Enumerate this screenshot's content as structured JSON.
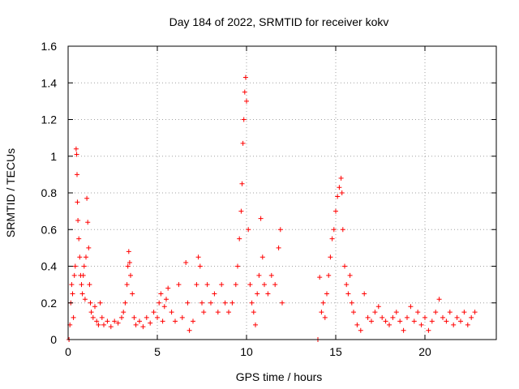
{
  "chart_data": {
    "type": "scatter",
    "title": "Day 184 of 2022, SRMTID for receiver kokv",
    "xlabel": "GPS time / hours",
    "ylabel": "SRMTID / TECUs",
    "xlim": [
      0,
      24
    ],
    "ylim": [
      0,
      1.6
    ],
    "grid": true,
    "marker": "+",
    "color": "#ff0000",
    "x_ticks": [
      0,
      5,
      10,
      15,
      20
    ],
    "y_ticks": [
      0,
      0.2,
      0.4,
      0.6,
      0.8,
      1,
      1.2,
      1.4,
      1.6
    ],
    "x_tick_labels": [
      "0",
      "5",
      "10",
      "15",
      "20"
    ],
    "y_tick_labels": [
      "0",
      "0.2",
      "0.4",
      "0.6",
      "0.8",
      "1",
      "1.2",
      "1.4",
      "1.6"
    ],
    "series": [
      {
        "name": "SRMTID",
        "points": [
          [
            0.05,
            0.0
          ],
          [
            0.1,
            0.08
          ],
          [
            0.15,
            0.2
          ],
          [
            0.2,
            0.3
          ],
          [
            0.25,
            0.25
          ],
          [
            0.3,
            0.12
          ],
          [
            0.35,
            0.35
          ],
          [
            0.4,
            0.4
          ],
          [
            0.45,
            1.04
          ],
          [
            0.48,
            1.01
          ],
          [
            0.5,
            0.9
          ],
          [
            0.52,
            0.75
          ],
          [
            0.55,
            0.65
          ],
          [
            0.6,
            0.55
          ],
          [
            0.65,
            0.45
          ],
          [
            0.7,
            0.35
          ],
          [
            0.75,
            0.3
          ],
          [
            0.8,
            0.25
          ],
          [
            0.85,
            0.35
          ],
          [
            0.9,
            0.4
          ],
          [
            0.95,
            0.22
          ],
          [
            1.0,
            0.45
          ],
          [
            1.05,
            0.77
          ],
          [
            1.1,
            0.64
          ],
          [
            1.15,
            0.5
          ],
          [
            1.2,
            0.3
          ],
          [
            1.25,
            0.2
          ],
          [
            1.3,
            0.15
          ],
          [
            1.4,
            0.12
          ],
          [
            1.5,
            0.18
          ],
          [
            1.6,
            0.1
          ],
          [
            1.7,
            0.08
          ],
          [
            1.8,
            0.2
          ],
          [
            1.9,
            0.12
          ],
          [
            2.0,
            0.08
          ],
          [
            2.2,
            0.1
          ],
          [
            2.4,
            0.07
          ],
          [
            2.6,
            0.1
          ],
          [
            2.8,
            0.09
          ],
          [
            3.0,
            0.12
          ],
          [
            3.1,
            0.15
          ],
          [
            3.2,
            0.2
          ],
          [
            3.3,
            0.3
          ],
          [
            3.35,
            0.4
          ],
          [
            3.4,
            0.48
          ],
          [
            3.45,
            0.42
          ],
          [
            3.5,
            0.35
          ],
          [
            3.6,
            0.25
          ],
          [
            3.7,
            0.12
          ],
          [
            3.8,
            0.08
          ],
          [
            4.0,
            0.1
          ],
          [
            4.2,
            0.07
          ],
          [
            4.4,
            0.12
          ],
          [
            4.6,
            0.09
          ],
          [
            4.8,
            0.15
          ],
          [
            5.0,
            0.12
          ],
          [
            5.1,
            0.2
          ],
          [
            5.2,
            0.25
          ],
          [
            5.3,
            0.1
          ],
          [
            5.4,
            0.18
          ],
          [
            5.5,
            0.22
          ],
          [
            5.6,
            0.28
          ],
          [
            5.8,
            0.15
          ],
          [
            6.0,
            0.1
          ],
          [
            6.2,
            0.3
          ],
          [
            6.4,
            0.12
          ],
          [
            6.6,
            0.42
          ],
          [
            6.7,
            0.2
          ],
          [
            6.8,
            0.05
          ],
          [
            7.0,
            0.1
          ],
          [
            7.2,
            0.3
          ],
          [
            7.3,
            0.45
          ],
          [
            7.4,
            0.4
          ],
          [
            7.5,
            0.2
          ],
          [
            7.6,
            0.15
          ],
          [
            7.8,
            0.3
          ],
          [
            8.0,
            0.2
          ],
          [
            8.2,
            0.25
          ],
          [
            8.4,
            0.15
          ],
          [
            8.6,
            0.3
          ],
          [
            8.8,
            0.2
          ],
          [
            9.0,
            0.15
          ],
          [
            9.2,
            0.2
          ],
          [
            9.4,
            0.3
          ],
          [
            9.5,
            0.4
          ],
          [
            9.6,
            0.55
          ],
          [
            9.7,
            0.7
          ],
          [
            9.75,
            0.85
          ],
          [
            9.8,
            1.07
          ],
          [
            9.85,
            1.2
          ],
          [
            9.9,
            1.35
          ],
          [
            9.95,
            1.43
          ],
          [
            10.0,
            1.3
          ],
          [
            10.1,
            0.6
          ],
          [
            10.2,
            0.3
          ],
          [
            10.3,
            0.2
          ],
          [
            10.4,
            0.15
          ],
          [
            10.5,
            0.08
          ],
          [
            10.6,
            0.25
          ],
          [
            10.7,
            0.35
          ],
          [
            10.8,
            0.66
          ],
          [
            10.9,
            0.45
          ],
          [
            11.0,
            0.3
          ],
          [
            11.2,
            0.25
          ],
          [
            11.4,
            0.35
          ],
          [
            11.6,
            0.3
          ],
          [
            11.8,
            0.5
          ],
          [
            11.9,
            0.6
          ],
          [
            12.0,
            0.2
          ],
          [
            14.0,
            0.0
          ],
          [
            14.1,
            0.34
          ],
          [
            14.2,
            0.15
          ],
          [
            14.3,
            0.2
          ],
          [
            14.4,
            0.12
          ],
          [
            14.5,
            0.25
          ],
          [
            14.6,
            0.35
          ],
          [
            14.7,
            0.45
          ],
          [
            14.8,
            0.55
          ],
          [
            14.9,
            0.6
          ],
          [
            15.0,
            0.7
          ],
          [
            15.1,
            0.78
          ],
          [
            15.2,
            0.83
          ],
          [
            15.3,
            0.88
          ],
          [
            15.35,
            0.8
          ],
          [
            15.4,
            0.6
          ],
          [
            15.5,
            0.4
          ],
          [
            15.6,
            0.3
          ],
          [
            15.7,
            0.25
          ],
          [
            15.8,
            0.35
          ],
          [
            15.9,
            0.2
          ],
          [
            16.0,
            0.15
          ],
          [
            16.2,
            0.08
          ],
          [
            16.4,
            0.05
          ],
          [
            16.6,
            0.25
          ],
          [
            16.8,
            0.12
          ],
          [
            17.0,
            0.1
          ],
          [
            17.2,
            0.15
          ],
          [
            17.4,
            0.18
          ],
          [
            17.6,
            0.12
          ],
          [
            17.8,
            0.1
          ],
          [
            18.0,
            0.08
          ],
          [
            18.2,
            0.12
          ],
          [
            18.4,
            0.15
          ],
          [
            18.6,
            0.1
          ],
          [
            18.8,
            0.05
          ],
          [
            19.0,
            0.12
          ],
          [
            19.2,
            0.18
          ],
          [
            19.4,
            0.1
          ],
          [
            19.6,
            0.15
          ],
          [
            19.8,
            0.08
          ],
          [
            20.0,
            0.12
          ],
          [
            20.2,
            0.05
          ],
          [
            20.4,
            0.1
          ],
          [
            20.6,
            0.15
          ],
          [
            20.8,
            0.22
          ],
          [
            21.0,
            0.12
          ],
          [
            21.2,
            0.1
          ],
          [
            21.4,
            0.15
          ],
          [
            21.6,
            0.08
          ],
          [
            21.8,
            0.12
          ],
          [
            22.0,
            0.1
          ],
          [
            22.2,
            0.15
          ],
          [
            22.4,
            0.08
          ],
          [
            22.6,
            0.12
          ],
          [
            22.8,
            0.15
          ]
        ]
      }
    ]
  }
}
